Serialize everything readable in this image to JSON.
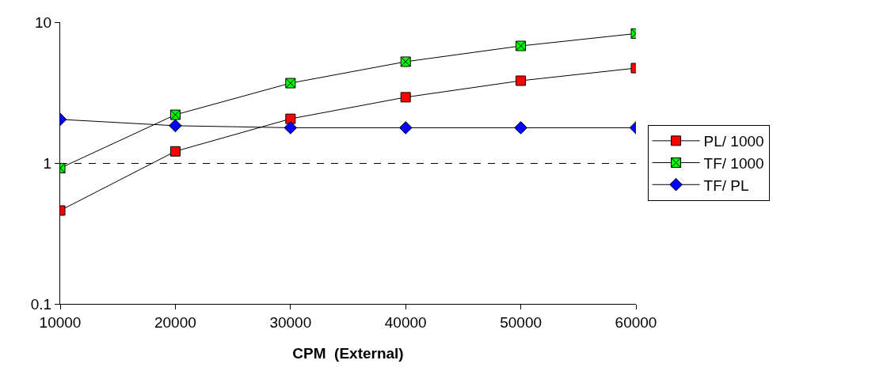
{
  "chart_data": {
    "type": "line",
    "xlabel": "CPM  (External)",
    "x": [
      10000,
      20000,
      30000,
      40000,
      50000,
      60000
    ],
    "series": [
      {
        "name": "PL/ 1000",
        "color": "#ff0000",
        "marker": "square",
        "values": [
          0.46,
          1.21,
          2.06,
          2.93,
          3.84,
          4.72
        ]
      },
      {
        "name": "TF/ 1000",
        "color": "#00ff00",
        "marker": "cross",
        "values": [
          0.92,
          2.2,
          3.69,
          5.24,
          6.78,
          8.3
        ]
      },
      {
        "name": "TF/ PL",
        "color": "#0000ff",
        "marker": "diamond",
        "values": [
          2.04,
          1.84,
          1.78,
          1.78,
          1.78,
          1.78
        ]
      }
    ],
    "log": "y",
    "xlim": [
      10000,
      60000
    ],
    "xticks": [
      10000,
      20000,
      30000,
      40000,
      50000,
      60000
    ],
    "ylim": [
      0.1,
      10
    ],
    "yticks": [
      0.1,
      1,
      10
    ],
    "grid": "y",
    "legend": "right",
    "line_style": "solid"
  }
}
